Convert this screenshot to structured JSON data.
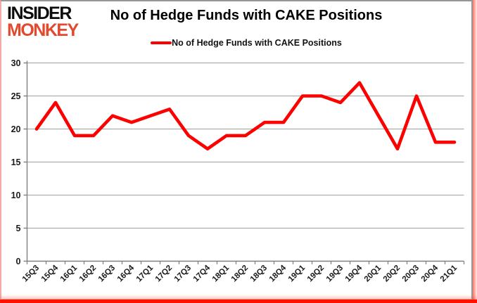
{
  "logo": {
    "line1": "INSIDER",
    "line2": "MONKEY",
    "accent_color": "#e2492f"
  },
  "header": {
    "title": "No of Hedge Funds with CAKE Positions"
  },
  "legend": {
    "label": "No of Hedge Funds with CAKE Positions",
    "line_color": "#ff0000"
  },
  "frame": {
    "border_color": "#969696",
    "glow_color": "#ff1300"
  },
  "chart_data": {
    "type": "line",
    "title": "No of Hedge Funds with CAKE Positions",
    "categories": [
      "15Q3",
      "15Q4",
      "16Q1",
      "16Q2",
      "16Q3",
      "16Q4",
      "17Q1",
      "17Q2",
      "17Q3",
      "17Q4",
      "18Q1",
      "18Q2",
      "18Q3",
      "18Q4",
      "19Q1",
      "19Q2",
      "19Q3",
      "19Q4",
      "20Q1",
      "20Q2",
      "20Q3",
      "20Q4",
      "21Q1"
    ],
    "series": [
      {
        "name": "No of Hedge Funds with CAKE Positions",
        "color": "#ff0000",
        "values": [
          20,
          24,
          19,
          19,
          22,
          21,
          22,
          23,
          19,
          17,
          19,
          19,
          21,
          21,
          25,
          25,
          24,
          27,
          22,
          17,
          25,
          18,
          18
        ]
      }
    ],
    "xlabel": "",
    "ylabel": "",
    "ylim": [
      0,
      30
    ],
    "yticks": [
      0,
      5,
      10,
      15,
      20,
      25,
      30
    ],
    "grid": true,
    "legend_position": "top",
    "gridline_color": "#a0a0a0",
    "axis_color": "#808080",
    "tick_label_color": "#1a1a1a"
  }
}
